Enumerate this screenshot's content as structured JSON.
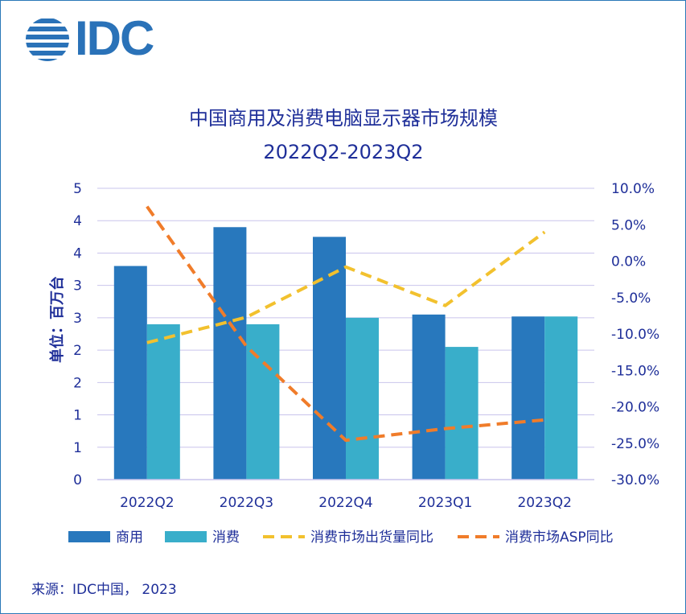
{
  "logo": {
    "text": "IDC"
  },
  "source": "来源：IDC中国， 2023",
  "colors": {
    "commercial": "#2878bd",
    "consumer": "#39aeca",
    "shipment_yoy": "#f2c12e",
    "asp_yoy": "#f07c2a",
    "text": "#1f2f99",
    "grid": "#c9c4ec",
    "frame": "#2a78b8"
  },
  "chart_data": {
    "type": "bar+line",
    "title": "中国商用及消费电脑显示器市场规模",
    "subtitle": "2022Q2-2023Q2",
    "ylabel": "单位：百万台",
    "categories": [
      "2022Q2",
      "2022Q3",
      "2022Q4",
      "2023Q1",
      "2023Q2"
    ],
    "y_ticks": [
      "0",
      "1",
      "1",
      "2",
      "2",
      "3",
      "3",
      "4",
      "4",
      "5"
    ],
    "ylim": [
      0,
      4.5
    ],
    "y2_ticks": [
      "-30.0%",
      "-25.0%",
      "-20.0%",
      "-15.0%",
      "-10.0%",
      "-5.0%",
      "0.0%",
      "5.0%",
      "10.0%"
    ],
    "y2lim": [
      -30,
      10
    ],
    "series": [
      {
        "name": "商用",
        "kind": "bar",
        "axis": "left",
        "values": [
          3.3,
          3.9,
          3.75,
          2.55,
          2.52
        ]
      },
      {
        "name": "消费",
        "kind": "bar",
        "axis": "left",
        "values": [
          2.4,
          2.4,
          2.5,
          2.05,
          2.52
        ]
      },
      {
        "name": "消费市场出货量同比",
        "kind": "line",
        "axis": "right",
        "values": [
          -11.2,
          -7.7,
          -0.8,
          -6.1,
          4.0
        ]
      },
      {
        "name": "消费市场ASP同比",
        "kind": "line",
        "axis": "right",
        "values": [
          7.5,
          -11.7,
          -24.6,
          -23.0,
          -21.8
        ]
      }
    ],
    "grid": true,
    "legend_position": "bottom"
  }
}
